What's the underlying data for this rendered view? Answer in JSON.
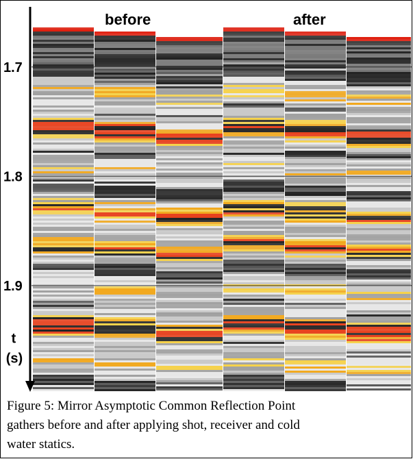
{
  "figure": {
    "labels": [
      "before",
      "after"
    ],
    "axis": {
      "label": "t",
      "unit": "(s)",
      "ticks": [
        1.7,
        1.8,
        1.9
      ],
      "lim": [
        1.645,
        1.996
      ]
    }
  },
  "caption": [
    "Figure 5: Mirror Asymptotic Common Reflection Point",
    "gathers before and after applying shot, receiver and cold",
    "water statics."
  ]
}
